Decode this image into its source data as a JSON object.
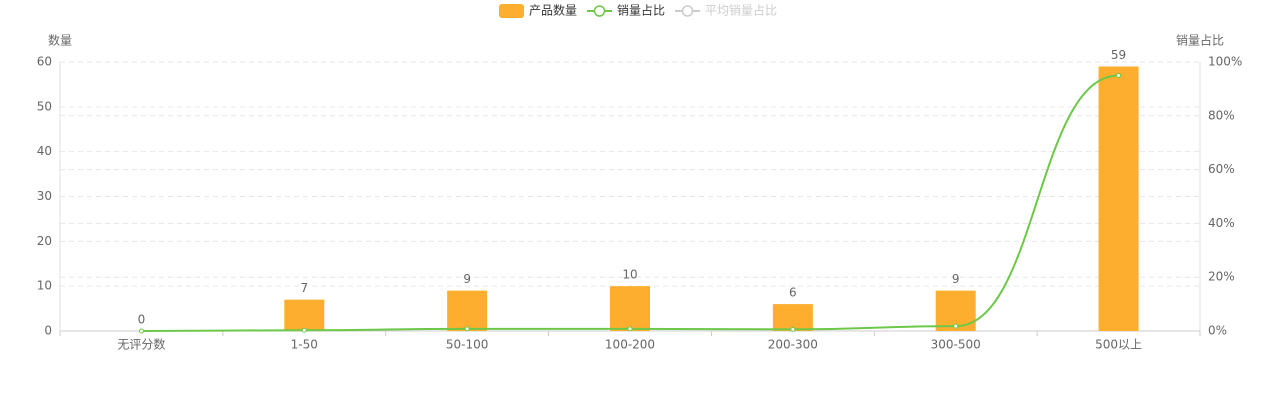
{
  "chart_data": {
    "type": "bar_line",
    "categories": [
      "无评分数",
      "1-50",
      "50-100",
      "100-200",
      "200-300",
      "300-500",
      "500以上"
    ],
    "series": [
      {
        "name": "产品数量",
        "type": "bar",
        "color": "#fdae2e",
        "values": [
          0,
          7,
          9,
          10,
          6,
          9,
          59
        ]
      },
      {
        "name": "销量占比",
        "type": "line",
        "axis": "y2",
        "color": "#6dc849",
        "values": [
          0,
          0.3,
          0.8,
          0.8,
          0.6,
          1.8,
          95
        ]
      },
      {
        "name": "平均销量占比",
        "type": "line",
        "axis": "y2",
        "color": "#cccccc",
        "hidden": true
      }
    ],
    "ylabel": "数量",
    "y2label": "销量占比",
    "ylim": [
      0,
      60
    ],
    "yticks": [
      0,
      10,
      20,
      30,
      40,
      50,
      60
    ],
    "y2lim": [
      0,
      100
    ],
    "y2ticks": [
      {
        "value": 0,
        "label": "0%"
      },
      {
        "value": 20,
        "label": "20%"
      },
      {
        "value": 40,
        "label": "40%"
      },
      {
        "value": 60,
        "label": "60%"
      },
      {
        "value": 80,
        "label": "80%"
      },
      {
        "value": 100,
        "label": "100%"
      }
    ],
    "grid": true,
    "legend": "top"
  }
}
